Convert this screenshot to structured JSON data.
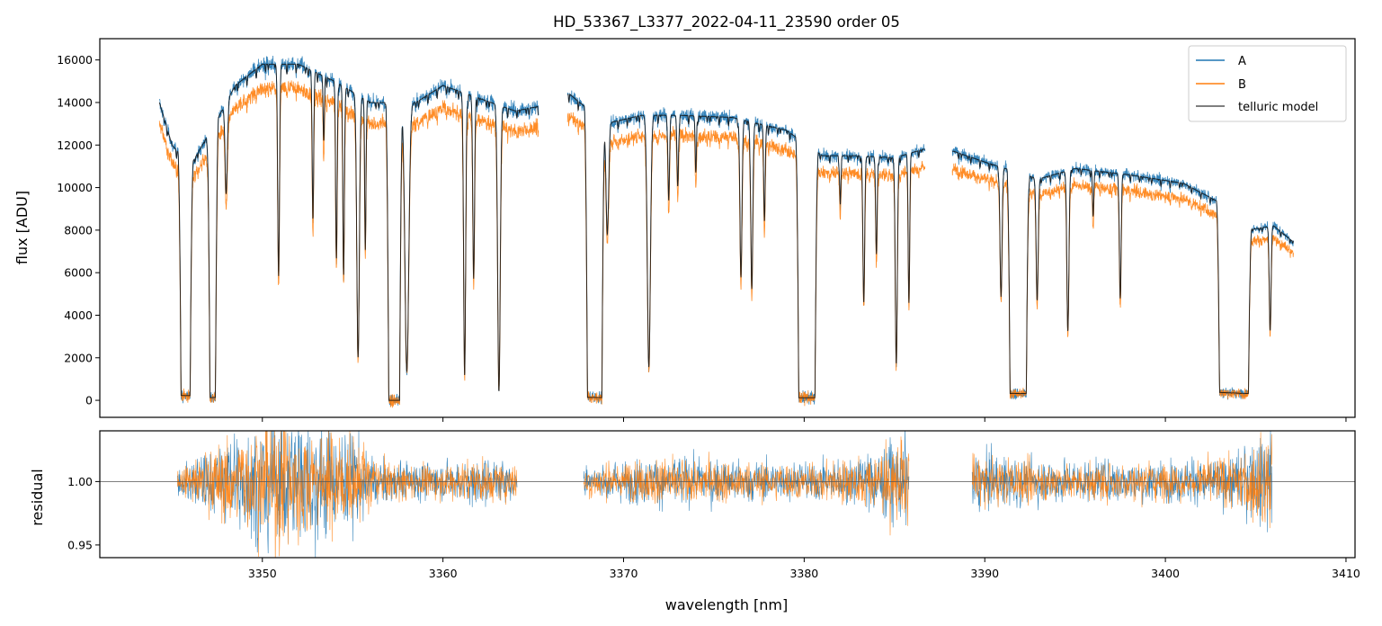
{
  "chart_data": [
    {
      "type": "line",
      "panel": "top",
      "title": "HD_53367_L3377_2022-04-11_23590  order 05",
      "xlabel": "",
      "ylabel": "flux [ADU]",
      "xlim": [
        3341,
        3410.5
      ],
      "ylim": [
        -800,
        17000
      ],
      "yticks": [
        0,
        2000,
        4000,
        6000,
        8000,
        10000,
        12000,
        14000,
        16000
      ],
      "ytick_labels": [
        "0",
        "2000",
        "4000",
        "6000",
        "8000",
        "10000",
        "12000",
        "14000",
        "16000"
      ],
      "xticks": [
        3350,
        3360,
        3370,
        3380,
        3390,
        3400,
        3410
      ],
      "grid": false,
      "legend": "top-right",
      "segments": [
        [
          3344.3,
          3365.3
        ],
        [
          3366.9,
          3386.7
        ],
        [
          3388.2,
          3407.1
        ]
      ],
      "continuum_knots": {
        "x": [
          3344.3,
          3345.0,
          3346.0,
          3347.5,
          3348.5,
          3350.0,
          3352.0,
          3354.0,
          3356.0,
          3358.5,
          3360.0,
          3362.0,
          3364.0,
          3365.2,
          3367.0,
          3369.0,
          3371.0,
          3373.0,
          3376.0,
          3379.0,
          3381.0,
          3383.0,
          3385.0,
          3386.6,
          3388.3,
          3390.0,
          3393.0,
          3395.0,
          3398.0,
          3401.0,
          3403.0,
          3404.5,
          3406.0,
          3407.0
        ],
        "y": [
          14000,
          12000,
          11000,
          13200,
          14800,
          15800,
          15800,
          15000,
          14000,
          14000,
          14800,
          14200,
          13600,
          13800,
          14400,
          13000,
          13400,
          13400,
          13300,
          12700,
          11500,
          11500,
          11400,
          11800,
          11700,
          11200,
          10400,
          10900,
          10600,
          10200,
          9300,
          8000,
          8200,
          7500
        ]
      },
      "absorption_bands": [
        {
          "start": 3345.5,
          "end": 3346.0,
          "depth": 0.98
        },
        {
          "start": 3347.1,
          "end": 3347.4,
          "depth": 0.99
        },
        {
          "start": 3357.0,
          "end": 3357.6,
          "depth": 1.0
        },
        {
          "start": 3368.0,
          "end": 3368.8,
          "depth": 0.99
        },
        {
          "start": 3379.7,
          "end": 3380.6,
          "depth": 0.99
        },
        {
          "start": 3391.4,
          "end": 3392.3,
          "depth": 0.97
        },
        {
          "start": 3403.0,
          "end": 3404.6,
          "depth": 0.96
        }
      ],
      "absorption_lines": [
        {
          "x": 3348.0,
          "depth": 0.3,
          "width": 0.09
        },
        {
          "x": 3350.9,
          "depth": 0.63,
          "width": 0.07
        },
        {
          "x": 3352.8,
          "depth": 0.45,
          "width": 0.06
        },
        {
          "x": 3353.4,
          "depth": 0.2,
          "width": 0.05
        },
        {
          "x": 3354.1,
          "depth": 0.55,
          "width": 0.06
        },
        {
          "x": 3354.5,
          "depth": 0.6,
          "width": 0.06
        },
        {
          "x": 3355.3,
          "depth": 0.86,
          "width": 0.1
        },
        {
          "x": 3355.7,
          "depth": 0.5,
          "width": 0.05
        },
        {
          "x": 3358.0,
          "depth": 0.9,
          "width": 0.15
        },
        {
          "x": 3361.2,
          "depth": 0.92,
          "width": 0.08
        },
        {
          "x": 3361.7,
          "depth": 0.6,
          "width": 0.07
        },
        {
          "x": 3363.1,
          "depth": 0.97,
          "width": 0.1
        },
        {
          "x": 3369.1,
          "depth": 0.4,
          "width": 0.1
        },
        {
          "x": 3371.4,
          "depth": 0.88,
          "width": 0.12
        },
        {
          "x": 3372.5,
          "depth": 0.3,
          "width": 0.06
        },
        {
          "x": 3373.0,
          "depth": 0.25,
          "width": 0.06
        },
        {
          "x": 3374.0,
          "depth": 0.2,
          "width": 0.05
        },
        {
          "x": 3376.5,
          "depth": 0.56,
          "width": 0.08
        },
        {
          "x": 3377.1,
          "depth": 0.6,
          "width": 0.08
        },
        {
          "x": 3377.8,
          "depth": 0.35,
          "width": 0.06
        },
        {
          "x": 3382.0,
          "depth": 0.2,
          "width": 0.05
        },
        {
          "x": 3383.3,
          "depth": 0.6,
          "width": 0.07
        },
        {
          "x": 3384.0,
          "depth": 0.4,
          "width": 0.06
        },
        {
          "x": 3385.1,
          "depth": 0.85,
          "width": 0.08
        },
        {
          "x": 3385.8,
          "depth": 0.6,
          "width": 0.06
        },
        {
          "x": 3390.9,
          "depth": 0.55,
          "width": 0.08
        },
        {
          "x": 3392.9,
          "depth": 0.55,
          "width": 0.08
        },
        {
          "x": 3394.6,
          "depth": 0.7,
          "width": 0.08
        },
        {
          "x": 3396.0,
          "depth": 0.2,
          "width": 0.05
        },
        {
          "x": 3397.5,
          "depth": 0.55,
          "width": 0.07
        },
        {
          "x": 3405.8,
          "depth": 0.6,
          "width": 0.07
        }
      ],
      "series": [
        {
          "name": "A",
          "color": "#1f77b4",
          "scale": 1.0
        },
        {
          "name": "B",
          "color": "#ff7f0e",
          "scale": 0.93
        },
        {
          "name": "telluric model",
          "color": "#555555",
          "scale": 1.0
        }
      ]
    },
    {
      "type": "line",
      "panel": "bottom",
      "title": "",
      "xlabel": "wavelength [nm]",
      "ylabel": "residual",
      "xlim": [
        3341,
        3410.5
      ],
      "ylim": [
        0.94,
        1.04
      ],
      "yticks": [
        0.95,
        1.0
      ],
      "ytick_labels": [
        "0.95",
        "1.00"
      ],
      "xticks": [
        3350,
        3360,
        3370,
        3380,
        3390,
        3400,
        3410
      ],
      "xtick_labels": [
        "3350",
        "3360",
        "3370",
        "3380",
        "3390",
        "3400",
        "3410"
      ],
      "reference_line": 1.0,
      "grid": false,
      "segments": [
        [
          3345.3,
          3364.1
        ],
        [
          3367.8,
          3385.8
        ],
        [
          3389.3,
          3405.9
        ]
      ],
      "noise_knots": {
        "x": [
          3345.3,
          3347.0,
          3349.0,
          3351.0,
          3353.0,
          3355.0,
          3356.5,
          3358.0,
          3360.0,
          3362.0,
          3364.1,
          3367.8,
          3372.0,
          3376.0,
          3380.0,
          3383.0,
          3385.8,
          3389.3,
          3393.0,
          3397.0,
          3401.0,
          3404.0,
          3405.9
        ],
        "y": [
          0.008,
          0.02,
          0.035,
          0.045,
          0.04,
          0.03,
          0.015,
          0.012,
          0.012,
          0.015,
          0.012,
          0.01,
          0.016,
          0.014,
          0.012,
          0.016,
          0.03,
          0.018,
          0.014,
          0.013,
          0.013,
          0.018,
          0.035
        ]
      },
      "series": [
        {
          "name": "A",
          "color": "#1f77b4"
        },
        {
          "name": "B",
          "color": "#ff7f0e"
        }
      ]
    }
  ]
}
